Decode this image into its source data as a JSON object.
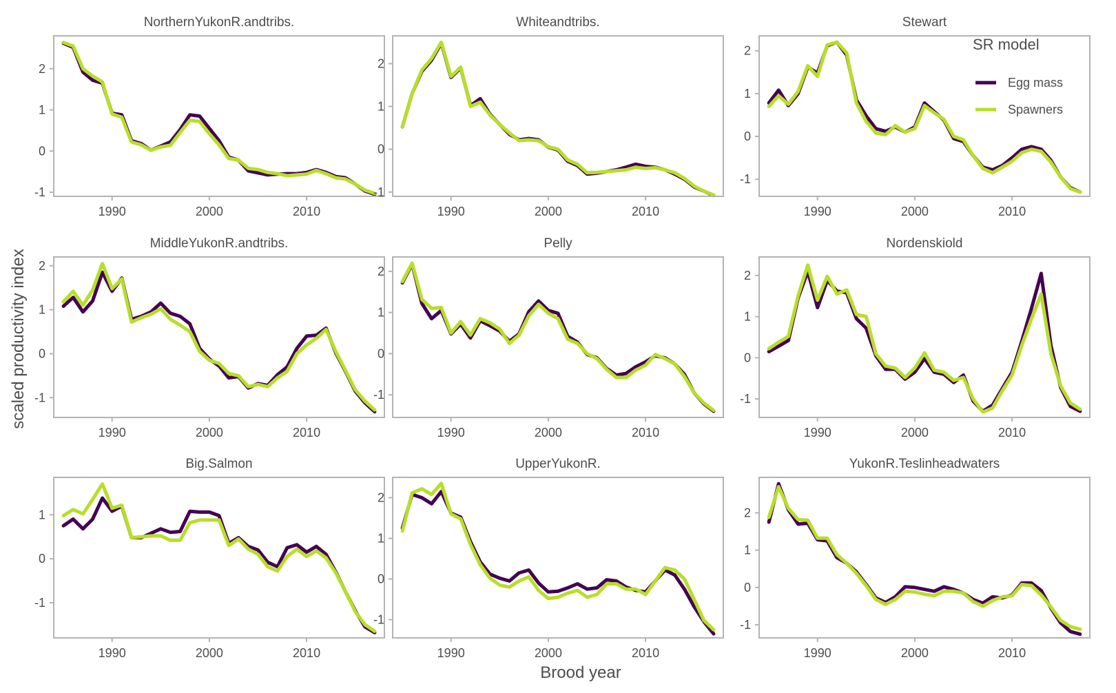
{
  "chart_data": {
    "type": "line",
    "xlabel": "Brood year",
    "ylabel": "scaled productivity index",
    "xlim": [
      1984,
      2018
    ],
    "x_ticks": [
      1990,
      2000,
      2010
    ],
    "years": [
      1985,
      1986,
      1987,
      1988,
      1989,
      1990,
      1991,
      1992,
      1993,
      1994,
      1995,
      1996,
      1997,
      1998,
      1999,
      2000,
      2001,
      2002,
      2003,
      2004,
      2005,
      2006,
      2007,
      2008,
      2009,
      2010,
      2011,
      2012,
      2013,
      2014,
      2015,
      2016,
      2017
    ],
    "legend": {
      "title": "SR model",
      "position": "top-right",
      "entries": [
        {
          "name": "Egg mass",
          "color": "#440154"
        },
        {
          "name": "Spawners",
          "color": "#B8DE29"
        }
      ]
    },
    "panels": [
      {
        "title": "NorthernYukonR.andtribs.",
        "ylim": [
          -1.1,
          2.8
        ],
        "y_ticks": [
          -1,
          0,
          1,
          2
        ],
        "series": [
          {
            "name": "Egg mass",
            "values": [
              2.62,
              2.52,
              1.92,
              1.72,
              1.65,
              0.92,
              0.88,
              0.25,
              0.18,
              0.02,
              0.12,
              0.22,
              0.52,
              0.88,
              0.85,
              0.55,
              0.25,
              -0.15,
              -0.22,
              -0.48,
              -0.53,
              -0.58,
              -0.56,
              -0.55,
              -0.55,
              -0.52,
              -0.45,
              -0.52,
              -0.62,
              -0.65,
              -0.8,
              -0.97,
              -1.05
            ]
          },
          {
            "name": "Spawners",
            "values": [
              2.64,
              2.55,
              2.0,
              1.82,
              1.68,
              0.9,
              0.82,
              0.22,
              0.15,
              0.02,
              0.1,
              0.14,
              0.45,
              0.75,
              0.72,
              0.42,
              0.15,
              -0.18,
              -0.22,
              -0.42,
              -0.45,
              -0.52,
              -0.55,
              -0.6,
              -0.58,
              -0.56,
              -0.47,
              -0.55,
              -0.65,
              -0.68,
              -0.8,
              -0.95,
              -1.03
            ]
          }
        ]
      },
      {
        "title": "Whiteandtribs.",
        "ylim": [
          -1.1,
          2.65
        ],
        "y_ticks": [
          -1,
          0,
          1,
          2
        ],
        "series": [
          {
            "name": "Egg mass",
            "values": [
              0.52,
              1.3,
              1.82,
              2.08,
              2.48,
              1.68,
              1.9,
              1.02,
              1.18,
              0.82,
              0.58,
              0.35,
              0.22,
              0.25,
              0.22,
              0.05,
              -0.02,
              -0.28,
              -0.38,
              -0.58,
              -0.56,
              -0.52,
              -0.48,
              -0.42,
              -0.35,
              -0.4,
              -0.42,
              -0.48,
              -0.58,
              -0.7,
              -0.88,
              -0.98,
              -1.08
            ]
          },
          {
            "name": "Spawners",
            "values": [
              0.52,
              1.3,
              1.85,
              2.12,
              2.5,
              1.7,
              1.92,
              1.0,
              1.1,
              0.8,
              0.58,
              0.38,
              0.2,
              0.22,
              0.2,
              0.06,
              0.0,
              -0.25,
              -0.35,
              -0.55,
              -0.54,
              -0.52,
              -0.5,
              -0.48,
              -0.42,
              -0.45,
              -0.43,
              -0.48,
              -0.55,
              -0.68,
              -0.86,
              -0.98,
              -1.07
            ]
          }
        ]
      },
      {
        "title": "Stewart",
        "ylim": [
          -1.4,
          2.35
        ],
        "y_ticks": [
          -1,
          0,
          1,
          2
        ],
        "series": [
          {
            "name": "Egg mass",
            "values": [
              0.78,
              1.08,
              0.72,
              1.0,
              1.62,
              1.48,
              2.12,
              2.2,
              1.9,
              0.85,
              0.48,
              0.18,
              0.12,
              0.22,
              0.1,
              0.22,
              0.78,
              0.58,
              0.38,
              -0.05,
              -0.12,
              -0.45,
              -0.72,
              -0.78,
              -0.68,
              -0.5,
              -0.3,
              -0.24,
              -0.3,
              -0.56,
              -0.95,
              -1.2,
              -1.3
            ]
          },
          {
            "name": "Spawners",
            "values": [
              0.7,
              0.95,
              0.75,
              1.05,
              1.65,
              1.4,
              2.14,
              2.2,
              1.95,
              0.78,
              0.35,
              0.08,
              0.04,
              0.25,
              0.1,
              0.18,
              0.72,
              0.55,
              0.4,
              0.0,
              -0.08,
              -0.45,
              -0.75,
              -0.85,
              -0.72,
              -0.58,
              -0.38,
              -0.3,
              -0.35,
              -0.6,
              -0.95,
              -1.22,
              -1.3
            ]
          }
        ]
      },
      {
        "title": "MiddleYukonR.andtribs.",
        "ylim": [
          -1.45,
          2.2
        ],
        "y_ticks": [
          -1,
          0,
          1,
          2
        ],
        "series": [
          {
            "name": "Egg mass",
            "values": [
              1.08,
              1.28,
              0.95,
              1.2,
              1.85,
              1.42,
              1.72,
              0.78,
              0.85,
              0.95,
              1.15,
              0.92,
              0.85,
              0.68,
              0.12,
              -0.12,
              -0.28,
              -0.55,
              -0.52,
              -0.78,
              -0.68,
              -0.72,
              -0.48,
              -0.3,
              0.12,
              0.4,
              0.42,
              0.58,
              0.02,
              -0.4,
              -0.85,
              -1.12,
              -1.32
            ]
          },
          {
            "name": "Spawners",
            "values": [
              1.18,
              1.42,
              1.1,
              1.45,
              2.05,
              1.48,
              1.7,
              0.72,
              0.82,
              0.9,
              1.02,
              0.78,
              0.65,
              0.5,
              0.05,
              -0.15,
              -0.22,
              -0.45,
              -0.5,
              -0.75,
              -0.7,
              -0.75,
              -0.55,
              -0.4,
              0.0,
              0.2,
              0.35,
              0.55,
              0.05,
              -0.38,
              -0.82,
              -1.08,
              -1.28
            ]
          }
        ]
      },
      {
        "title": "Pelly",
        "ylim": [
          -1.55,
          2.35
        ],
        "y_ticks": [
          -1,
          0,
          1,
          2
        ],
        "series": [
          {
            "name": "Egg mass",
            "values": [
              1.72,
              2.18,
              1.22,
              0.85,
              1.05,
              0.48,
              0.72,
              0.38,
              0.8,
              0.68,
              0.55,
              0.3,
              0.48,
              1.02,
              1.28,
              1.05,
              0.98,
              0.42,
              0.28,
              -0.02,
              -0.1,
              -0.36,
              -0.52,
              -0.48,
              -0.32,
              -0.2,
              -0.05,
              -0.1,
              -0.25,
              -0.5,
              -0.95,
              -1.22,
              -1.4
            ]
          },
          {
            "name": "Spawners",
            "values": [
              1.75,
              2.2,
              1.32,
              1.1,
              1.12,
              0.5,
              0.78,
              0.45,
              0.85,
              0.75,
              0.6,
              0.25,
              0.45,
              0.92,
              1.2,
              0.98,
              0.85,
              0.35,
              0.25,
              0.0,
              -0.12,
              -0.38,
              -0.58,
              -0.58,
              -0.4,
              -0.28,
              -0.02,
              -0.12,
              -0.25,
              -0.55,
              -0.95,
              -1.2,
              -1.38
            ]
          }
        ]
      },
      {
        "title": "Nordenskiold",
        "ylim": [
          -1.45,
          2.45
        ],
        "y_ticks": [
          -1,
          0,
          1,
          2
        ],
        "series": [
          {
            "name": "Egg mass",
            "values": [
              0.15,
              0.28,
              0.42,
              1.45,
              2.1,
              1.22,
              1.88,
              1.62,
              1.58,
              0.95,
              0.72,
              0.05,
              -0.28,
              -0.28,
              -0.52,
              -0.35,
              -0.02,
              -0.35,
              -0.4,
              -0.6,
              -0.42,
              -1.05,
              -1.3,
              -1.15,
              -0.75,
              -0.35,
              0.4,
              1.2,
              2.05,
              0.3,
              -0.72,
              -1.18,
              -1.3
            ]
          },
          {
            "name": "Spawners",
            "values": [
              0.22,
              0.38,
              0.52,
              1.5,
              2.25,
              1.4,
              1.98,
              1.55,
              1.65,
              1.05,
              1.0,
              0.1,
              -0.2,
              -0.25,
              -0.48,
              -0.25,
              0.12,
              -0.3,
              -0.35,
              -0.55,
              -0.48,
              -1.0,
              -1.32,
              -1.22,
              -0.8,
              -0.42,
              0.3,
              0.95,
              1.55,
              0.1,
              -0.68,
              -1.1,
              -1.25
            ]
          }
        ]
      },
      {
        "title": "Big.Salmon",
        "ylim": [
          -1.8,
          1.85
        ],
        "y_ticks": [
          -1,
          0,
          1
        ],
        "series": [
          {
            "name": "Egg mass",
            "values": [
              0.75,
              0.9,
              0.68,
              0.9,
              1.38,
              1.08,
              1.2,
              0.48,
              0.48,
              0.58,
              0.68,
              0.6,
              0.62,
              1.08,
              1.06,
              1.06,
              0.98,
              0.35,
              0.48,
              0.28,
              0.2,
              -0.08,
              -0.18,
              0.25,
              0.32,
              0.15,
              0.28,
              0.1,
              -0.3,
              -0.75,
              -1.18,
              -1.55,
              -1.68
            ]
          },
          {
            "name": "Spawners",
            "values": [
              0.98,
              1.12,
              1.02,
              1.35,
              1.7,
              1.15,
              1.22,
              0.48,
              0.5,
              0.52,
              0.52,
              0.42,
              0.42,
              0.82,
              0.88,
              0.88,
              0.88,
              0.3,
              0.45,
              0.22,
              0.1,
              -0.18,
              -0.28,
              0.05,
              0.22,
              0.05,
              0.18,
              0.02,
              -0.32,
              -0.75,
              -1.2,
              -1.5,
              -1.65
            ]
          }
        ]
      },
      {
        "title": "UpperYukonR.",
        "ylim": [
          -1.45,
          2.5
        ],
        "y_ticks": [
          -1,
          0,
          1,
          2
        ],
        "series": [
          {
            "name": "Egg mass",
            "values": [
              1.25,
              2.08,
              2.0,
              1.85,
              2.15,
              1.62,
              1.52,
              0.92,
              0.42,
              0.12,
              0.02,
              -0.05,
              0.15,
              0.22,
              -0.1,
              -0.32,
              -0.3,
              -0.22,
              -0.12,
              -0.25,
              -0.22,
              -0.02,
              -0.05,
              -0.2,
              -0.28,
              -0.32,
              -0.05,
              0.22,
              0.1,
              -0.25,
              -0.68,
              -1.05,
              -1.35
            ]
          },
          {
            "name": "Spawners",
            "values": [
              1.18,
              2.12,
              2.22,
              2.08,
              2.35,
              1.6,
              1.48,
              0.85,
              0.35,
              0.02,
              -0.15,
              -0.2,
              -0.05,
              0.05,
              -0.28,
              -0.48,
              -0.45,
              -0.35,
              -0.28,
              -0.45,
              -0.38,
              -0.12,
              -0.12,
              -0.25,
              -0.25,
              -0.38,
              -0.05,
              0.28,
              0.22,
              0.0,
              -0.5,
              -1.02,
              -1.25
            ]
          }
        ]
      },
      {
        "title": "YukonR.Teslinheadwaters",
        "ylim": [
          -1.35,
          2.95
        ],
        "y_ticks": [
          -1,
          0,
          1,
          2
        ],
        "series": [
          {
            "name": "Egg mass",
            "values": [
              1.75,
              2.78,
              2.08,
              1.7,
              1.72,
              1.28,
              1.25,
              0.8,
              0.65,
              0.42,
              0.08,
              -0.28,
              -0.4,
              -0.25,
              0.02,
              0.0,
              -0.05,
              -0.1,
              0.02,
              -0.05,
              -0.15,
              -0.32,
              -0.42,
              -0.25,
              -0.28,
              -0.2,
              0.12,
              0.12,
              -0.08,
              -0.55,
              -0.95,
              -1.18,
              -1.25
            ]
          },
          {
            "name": "Spawners",
            "values": [
              1.88,
              2.7,
              2.12,
              1.82,
              1.8,
              1.32,
              1.32,
              0.88,
              0.65,
              0.38,
              0.05,
              -0.32,
              -0.45,
              -0.32,
              -0.1,
              -0.12,
              -0.18,
              -0.22,
              -0.1,
              -0.1,
              -0.15,
              -0.38,
              -0.5,
              -0.35,
              -0.25,
              -0.22,
              0.08,
              0.05,
              -0.2,
              -0.52,
              -0.88,
              -1.05,
              -1.12
            ]
          }
        ]
      }
    ]
  }
}
